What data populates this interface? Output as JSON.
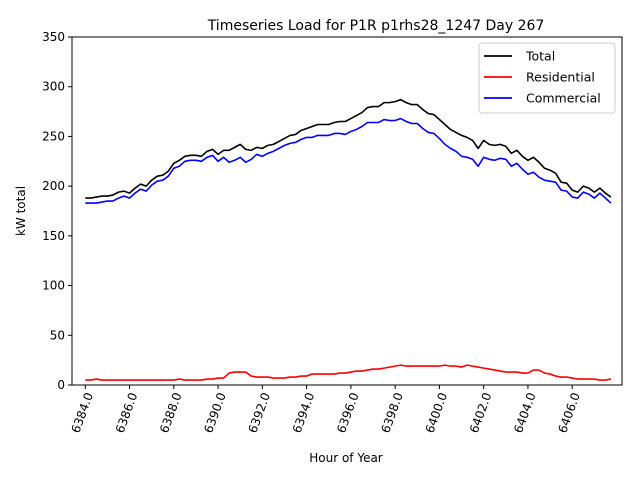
{
  "chart_data": {
    "type": "line",
    "title": "Timeseries Load for P1R p1rhs28_1247  Day 267",
    "xlabel": "Hour of Year",
    "ylabel": "kW total",
    "xlim": [
      6383.4,
      6408.25
    ],
    "ylim": [
      0,
      350
    ],
    "xticks": [
      6384,
      6386,
      6388,
      6390,
      6392,
      6394,
      6396,
      6398,
      6400,
      6402,
      6404,
      6406
    ],
    "xtick_labels": [
      "6384.0",
      "6386.0",
      "6388.0",
      "6390.0",
      "6392.0",
      "6394.0",
      "6396.0",
      "6398.0",
      "6400.0",
      "6402.0",
      "6404.0",
      "6406.0"
    ],
    "yticks": [
      0,
      50,
      100,
      150,
      200,
      250,
      300,
      350
    ],
    "ytick_labels": [
      "0",
      "50",
      "100",
      "150",
      "200",
      "250",
      "300",
      "350"
    ],
    "legend_position": "top-right",
    "x_step_hours": 0.25,
    "x_start": 6384,
    "series": [
      {
        "name": "Total",
        "color": "#000000",
        "values": [
          188,
          188,
          189,
          190,
          190,
          191,
          194,
          195,
          193,
          198,
          202,
          200,
          206,
          210,
          211,
          215,
          223,
          226,
          230,
          231,
          231,
          230,
          235,
          237,
          232,
          236,
          236,
          239,
          242,
          237,
          236,
          239,
          238,
          241,
          242,
          245,
          248,
          251,
          252,
          256,
          258,
          260,
          262,
          262,
          262,
          264,
          265,
          265,
          268,
          271,
          274,
          279,
          280,
          280,
          284,
          284,
          285,
          287,
          284,
          282,
          282,
          277,
          273,
          272,
          267,
          262,
          257,
          254,
          251,
          249,
          246,
          238,
          246,
          242,
          241,
          242,
          240,
          233,
          236,
          230,
          226,
          229,
          224,
          218,
          216,
          213,
          204,
          203,
          196,
          194,
          200,
          198,
          194,
          198,
          193,
          189
        ]
      },
      {
        "name": "Residential",
        "color": "#ff0000",
        "values": [
          5,
          5,
          6,
          5,
          5,
          5,
          5,
          5,
          5,
          5,
          5,
          5,
          5,
          5,
          5,
          5,
          5,
          6,
          5,
          5,
          5,
          5,
          6,
          6,
          7,
          7,
          12,
          13,
          13,
          13,
          9,
          8,
          8,
          8,
          7,
          7,
          7,
          8,
          8,
          9,
          9,
          11,
          11,
          11,
          11,
          11,
          12,
          12,
          13,
          14,
          14,
          15,
          16,
          16,
          17,
          18,
          19,
          20,
          19,
          19,
          19,
          19,
          19,
          19,
          19,
          20,
          19,
          19,
          18,
          20,
          19,
          18,
          17,
          16,
          15,
          14,
          13,
          13,
          13,
          12,
          12,
          15,
          15,
          12,
          11,
          9,
          8,
          8,
          7,
          6,
          6,
          6,
          6,
          5,
          5,
          6
        ]
      },
      {
        "name": "Commercial",
        "color": "#0000ff",
        "values": [
          183,
          183,
          183,
          184,
          185,
          185,
          188,
          190,
          188,
          193,
          197,
          195,
          201,
          205,
          206,
          210,
          218,
          220,
          225,
          226,
          226,
          225,
          229,
          231,
          225,
          229,
          224,
          226,
          229,
          224,
          227,
          232,
          230,
          233,
          235,
          238,
          241,
          243,
          244,
          247,
          249,
          249,
          251,
          251,
          251,
          253,
          253,
          252,
          255,
          257,
          260,
          264,
          264,
          264,
          267,
          266,
          266,
          268,
          265,
          263,
          263,
          258,
          254,
          253,
          248,
          242,
          238,
          235,
          230,
          229,
          227,
          220,
          229,
          227,
          226,
          228,
          227,
          220,
          223,
          217,
          212,
          214,
          209,
          206,
          205,
          204,
          196,
          195,
          189,
          188,
          194,
          192,
          188,
          193,
          188,
          183
        ]
      }
    ]
  }
}
